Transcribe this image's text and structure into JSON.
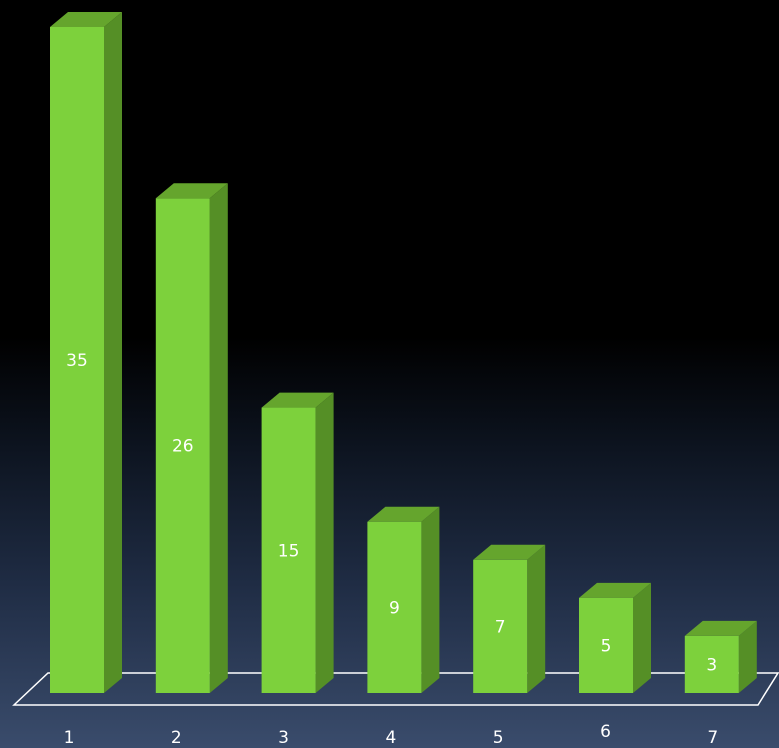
{
  "chart_data": {
    "type": "bar",
    "categories": [
      "1",
      "2",
      "3",
      "4",
      "5",
      "6",
      "7"
    ],
    "values": [
      35,
      26,
      15,
      9,
      7,
      5,
      3
    ],
    "data_labels": [
      "35",
      "26",
      "15",
      "9",
      "7",
      "5",
      "3"
    ],
    "title": "",
    "xlabel": "",
    "ylabel": "",
    "ylim": [
      0,
      35
    ],
    "grid": false,
    "legend": "none",
    "style": "3d-column",
    "colors": {
      "bar_front": "#7dd13c",
      "bar_side": "#558f26",
      "bar_top": "#65a52d",
      "floor_line": "#ffffff",
      "label_text": "#ffffff"
    }
  }
}
